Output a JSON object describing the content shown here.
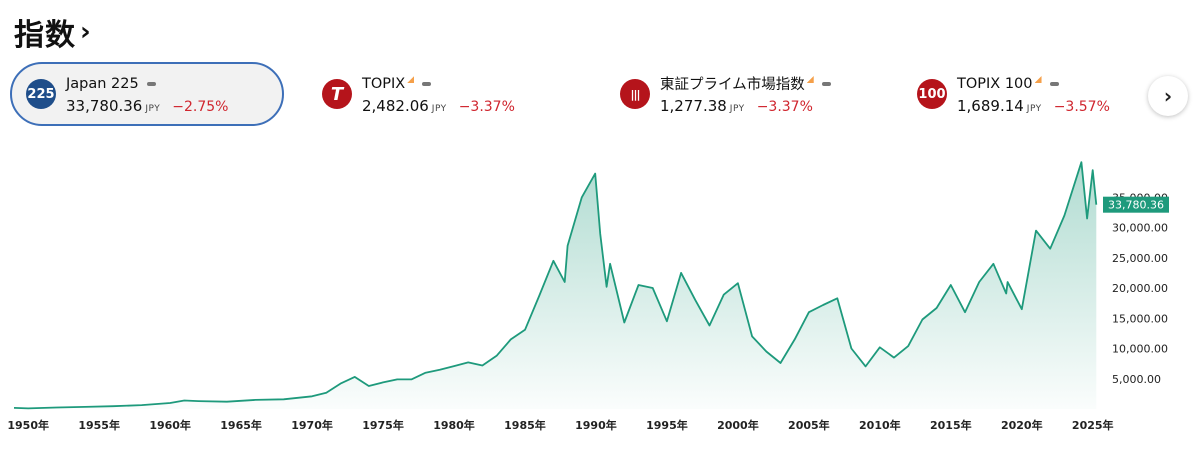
{
  "page_title": "指数",
  "cards": [
    {
      "badge": "225",
      "badge_color": "#1f4e8a",
      "name": "Japan 225",
      "value": "33,780.36",
      "currency": "JPY",
      "change": "−2.75%",
      "selected": true,
      "delayed": false
    },
    {
      "badge": "T",
      "badge_color": "#b5141b",
      "name": "TOPIX",
      "value": "2,482.06",
      "currency": "JPY",
      "change": "−3.37%",
      "selected": false,
      "delayed": true
    },
    {
      "badge": "|||",
      "badge_color": "#b5141b",
      "name": "東証プライム市場指数",
      "value": "1,277.38",
      "currency": "JPY",
      "change": "−3.37%",
      "selected": false,
      "delayed": true
    },
    {
      "badge": "100",
      "badge_color": "#b5141b",
      "name": "TOPIX 100",
      "value": "1,689.14",
      "currency": "JPY",
      "change": "−3.57%",
      "selected": false,
      "delayed": true
    }
  ],
  "next_button": "›",
  "chart_data": {
    "type": "area",
    "series": [
      {
        "values": [
          [
            1949,
            176
          ],
          [
            1950,
            101
          ],
          [
            1952,
            250
          ],
          [
            1954,
            350
          ],
          [
            1956,
            470
          ],
          [
            1958,
            650
          ],
          [
            1960,
            1000
          ],
          [
            1961,
            1400
          ],
          [
            1962,
            1300
          ],
          [
            1964,
            1200
          ],
          [
            1966,
            1500
          ],
          [
            1968,
            1600
          ],
          [
            1970,
            2100
          ],
          [
            1971,
            2700
          ],
          [
            1972,
            4200
          ],
          [
            1973,
            5300
          ],
          [
            1974,
            3800
          ],
          [
            1975,
            4400
          ],
          [
            1976,
            4900
          ],
          [
            1977,
            4900
          ],
          [
            1978,
            6000
          ],
          [
            1979,
            6500
          ],
          [
            1980,
            7100
          ],
          [
            1981,
            7700
          ],
          [
            1982,
            7200
          ],
          [
            1983,
            8800
          ],
          [
            1984,
            11500
          ],
          [
            1985,
            13100
          ],
          [
            1986,
            18700
          ],
          [
            1987,
            24500
          ],
          [
            1987.8,
            21000
          ],
          [
            1988,
            27000
          ],
          [
            1989,
            35000
          ],
          [
            1989.95,
            38915
          ],
          [
            1990.3,
            29000
          ],
          [
            1990.75,
            20200
          ],
          [
            1991,
            24000
          ],
          [
            1992,
            14300
          ],
          [
            1993,
            20500
          ],
          [
            1994,
            20000
          ],
          [
            1995,
            14500
          ],
          [
            1996,
            22500
          ],
          [
            1997,
            18000
          ],
          [
            1998,
            13800
          ],
          [
            1999,
            18900
          ],
          [
            2000,
            20800
          ],
          [
            2001,
            12000
          ],
          [
            2002,
            9500
          ],
          [
            2003,
            7600
          ],
          [
            2004,
            11500
          ],
          [
            2005,
            16000
          ],
          [
            2006,
            17200
          ],
          [
            2007,
            18300
          ],
          [
            2008,
            10000
          ],
          [
            2009,
            7050
          ],
          [
            2010,
            10200
          ],
          [
            2011,
            8500
          ],
          [
            2012,
            10400
          ],
          [
            2013,
            14800
          ],
          [
            2014,
            16700
          ],
          [
            2015,
            20500
          ],
          [
            2016,
            16000
          ],
          [
            2017,
            21000
          ],
          [
            2018,
            24000
          ],
          [
            2018.9,
            19100
          ],
          [
            2019,
            21000
          ],
          [
            2020,
            16500
          ],
          [
            2021,
            29500
          ],
          [
            2022,
            26500
          ],
          [
            2023,
            32000
          ],
          [
            2024.2,
            40800
          ],
          [
            2024.6,
            31500
          ],
          [
            2025,
            39500
          ],
          [
            2025.25,
            33780.36
          ]
        ]
      }
    ],
    "yticks": [
      "5,000.00",
      "10,000.00",
      "15,000.00",
      "20,000.00",
      "25,000.00",
      "30,000.00",
      "35,000.00"
    ],
    "ytick_values": [
      5000,
      10000,
      15000,
      20000,
      25000,
      30000,
      35000
    ],
    "xticks": [
      "1950年",
      "1955年",
      "1960年",
      "1965年",
      "1970年",
      "1975年",
      "1980年",
      "1985年",
      "1990年",
      "1995年",
      "2000年",
      "2005年",
      "2010年",
      "2015年",
      "2020年",
      "2025年"
    ],
    "xtick_values": [
      1950,
      1955,
      1960,
      1965,
      1970,
      1975,
      1980,
      1985,
      1990,
      1995,
      2000,
      2005,
      2010,
      2015,
      2020,
      2025
    ],
    "last_value": 33780.36,
    "last_label": "33,780.36",
    "xlim": [
      1949,
      2025.3
    ],
    "ylim": [
      0,
      41500
    ],
    "line_color": "#1e9a7c",
    "label_color": "#1e9a7c"
  }
}
